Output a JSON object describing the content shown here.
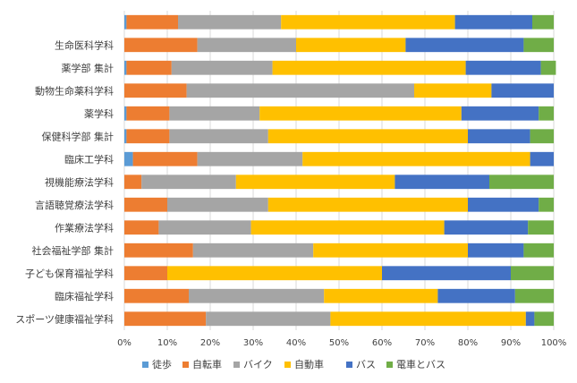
{
  "chart_data": {
    "type": "bar",
    "orientation": "horizontal",
    "stacked": "percent",
    "title": "",
    "xlabel": "",
    "ylabel": "",
    "xlim": [
      0,
      100
    ],
    "x_ticks": [
      "0%",
      "10%",
      "20%",
      "30%",
      "40%",
      "50%",
      "60%",
      "70%",
      "80%",
      "90%",
      "100%"
    ],
    "grid": true,
    "legend_position": "bottom",
    "categories": [
      "",
      "生命医科学科",
      "薬学部 集計",
      "動物生命薬科学科",
      "薬学科",
      "保健科学部 集計",
      "臨床工学科",
      "視機能療法学科",
      "言語聴覚療法学科",
      "作業療法学科",
      "社会福祉学部 集計",
      "子ども保育福祉学科",
      "臨床福祉学科",
      "スポーツ健康福祉学科"
    ],
    "series": [
      {
        "name": "徒歩",
        "color": "#5b9bd5",
        "values": [
          0.5,
          0,
          0.5,
          0,
          0.5,
          0.5,
          2,
          0,
          0,
          0,
          0,
          0,
          0,
          0
        ]
      },
      {
        "name": "自転車",
        "color": "#ed7d31",
        "values": [
          12,
          17,
          10.5,
          14.5,
          10,
          10,
          15,
          4,
          10,
          8,
          16,
          10,
          15,
          19
        ]
      },
      {
        "name": "バイク",
        "color": "#a5a5a5",
        "values": [
          24,
          23,
          23.5,
          53,
          21,
          23,
          24.5,
          22,
          23.5,
          21.5,
          28,
          0,
          31.5,
          29
        ]
      },
      {
        "name": "自動車",
        "color": "#ffc000",
        "values": [
          40.5,
          25.5,
          45,
          18,
          47,
          46.5,
          53,
          37,
          46.5,
          45,
          36,
          50,
          26.5,
          45.5
        ]
      },
      {
        "name": "バス",
        "color": "#4472c4",
        "values": [
          18,
          27.5,
          17.5,
          14.5,
          18,
          14.5,
          5.5,
          22,
          16.5,
          19.5,
          13,
          30,
          18,
          2
        ]
      },
      {
        "name": "電車とバス",
        "color": "#70ad47",
        "values": [
          5,
          7,
          3.5,
          0,
          3.5,
          5.5,
          0,
          15,
          3.5,
          6,
          7,
          10,
          9,
          4.5
        ]
      }
    ]
  }
}
